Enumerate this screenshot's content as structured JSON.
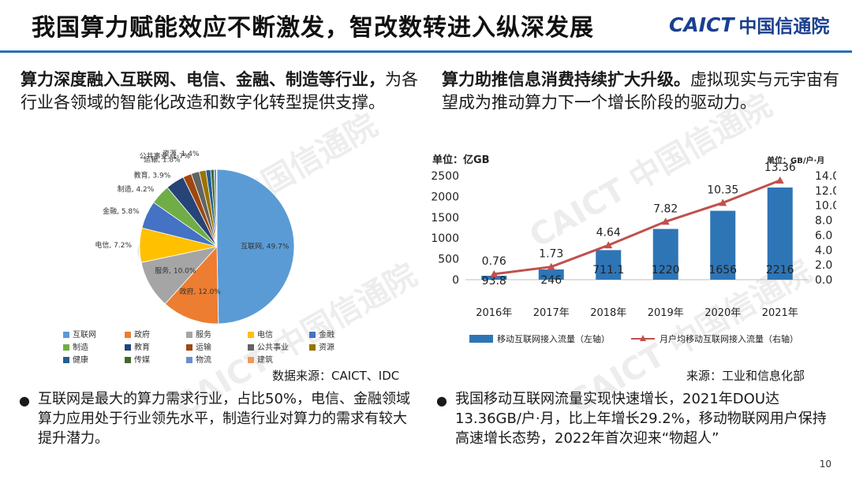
{
  "header": {
    "title": "我国算力赋能效应不断激发，智改数转进入纵深发展",
    "logo_text": "CAICT",
    "logo_cn": "中国信通院"
  },
  "left": {
    "heading_bold": "算力深度融入互联网、电信、金融、制造等行业，",
    "heading_rest": "为各行业各领域的智能化改造和数字化转型提供支撑。",
    "source": "数据来源：CAICT、IDC",
    "bullet": "互联网是最大的算力需求行业，占比50%，电信、金融领域算力应用处于行业领先水平，制造行业对算力的需求有较大提升潜力。"
  },
  "right": {
    "heading_bold": "算力助推信息消费持续扩大升级。",
    "heading_rest": "虚拟现实与元宇宙有望成为推动算力下一个增长阶段的驱动力。",
    "source": "来源：工业和信息化部",
    "bullet": "我国移动互联网流量实现快速增长，2021年DOU达13.36GB/户·月，比上年增长29.2%，移动物联网用户保持高速增长态势，2022年首次迎来“物超人”"
  },
  "page_number": "10",
  "watermarks": [
    "CAICT 中国信通院",
    "CAICT 中国信通院",
    "CAICT 中国信通院",
    "CAICT 中国信通院"
  ],
  "chart_data": [
    {
      "type": "pie",
      "categories": [
        "互联网",
        "政府",
        "服务",
        "电信",
        "金融",
        "制造",
        "教育",
        "运输",
        "公共事业",
        "资源",
        "健康",
        "传媒",
        "物流",
        "建筑"
      ],
      "values": [
        49.7,
        12.0,
        10.0,
        7.2,
        5.8,
        4.2,
        3.9,
        1.8,
        1.7,
        1.4,
        1.0,
        0.7,
        0.5,
        0.1
      ],
      "labels": [
        "互联网, 49.7%",
        "政府, 12.0%",
        "服务, 10.0%",
        "电信, 7.2%",
        "金融, 5.8%",
        "制造, 4.2%",
        "教育, 3.9%",
        "运输, 1.8%",
        "公共事业, 1.7%",
        "资源, 1.4%",
        "",
        "",
        "",
        ""
      ],
      "colors": [
        "#5b9bd5",
        "#ed7d31",
        "#a5a5a5",
        "#ffc000",
        "#4472c4",
        "#70ad47",
        "#264478",
        "#9e480e",
        "#636363",
        "#997300",
        "#255e91",
        "#43682b",
        "#698ed0",
        "#f1975a"
      ],
      "legend": "bottom"
    },
    {
      "type": "bar+line",
      "categories": [
        "2016年",
        "2017年",
        "2018年",
        "2019年",
        "2020年",
        "2021年"
      ],
      "series": [
        {
          "name": "移动互联网接入流量（左轴）",
          "values": [
            93.8,
            246,
            711.1,
            1220,
            1656,
            2216
          ],
          "color": "#2e75b6",
          "axis": "left"
        },
        {
          "name": "月户均移动互联网接入流量（右轴）",
          "values": [
            0.76,
            1.73,
            4.64,
            7.82,
            10.35,
            13.36
          ],
          "color": "#c0504d",
          "axis": "right"
        }
      ],
      "left_unit": "单位：亿GB",
      "right_unit": "单位：GB/户·月",
      "ylim_left": [
        0,
        2500
      ],
      "ylim_right": [
        0,
        14
      ],
      "yticks_left": [
        "0",
        "500",
        "1000",
        "1500",
        "2000",
        "2500"
      ],
      "yticks_right": [
        "0.0",
        "2.0",
        "4.0",
        "6.0",
        "8.0",
        "10.0",
        "12.0",
        "14.0"
      ],
      "legend": "bottom"
    }
  ]
}
